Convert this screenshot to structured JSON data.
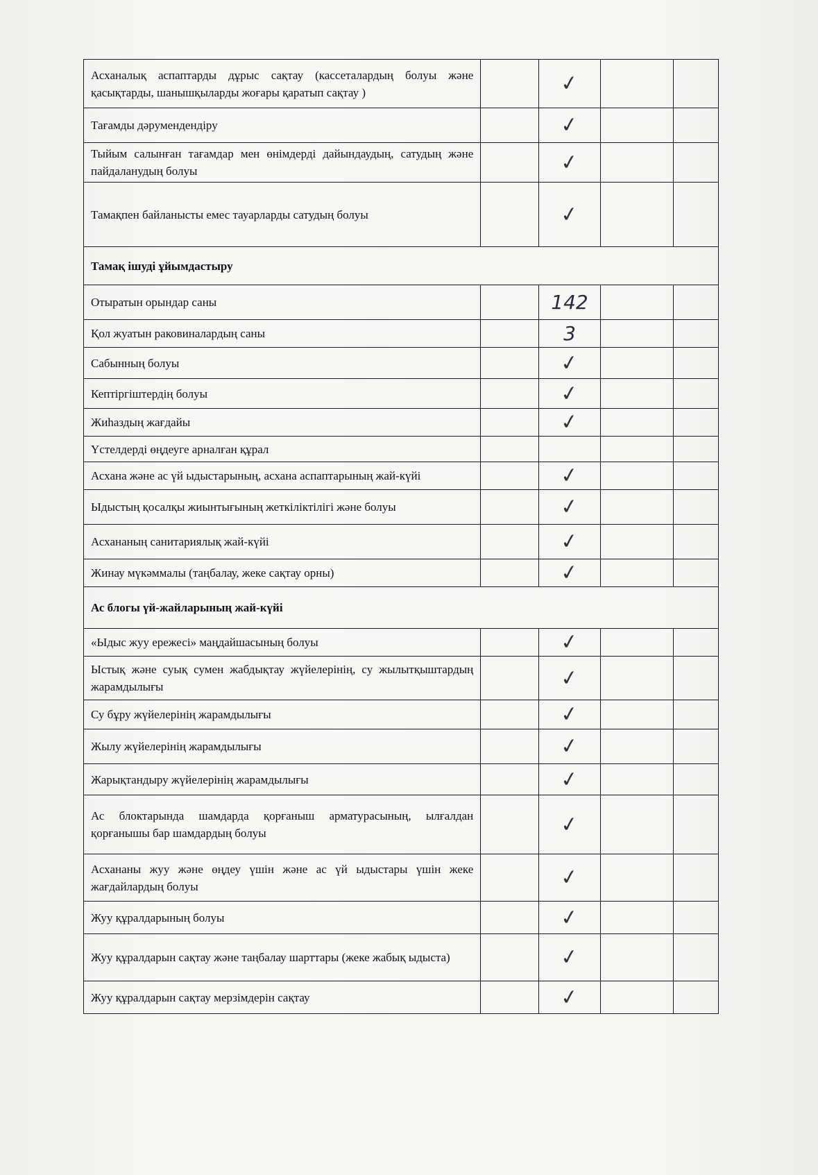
{
  "rows": [
    {
      "type": "item",
      "text": "Асханалық аспаптарды дұрыс сақтау (кассеталардың болуы және қасықтарды, шанышқыларды жоғары қаратып сақтау )",
      "mark": "✓"
    },
    {
      "type": "item",
      "text": "Тағамды дәрумендендіру",
      "mark": "✓"
    },
    {
      "type": "item",
      "text": "Тыйым салынған тағамдар мен өнімдерді дайындаудың, сатудың және пайдаланудың болуы",
      "mark": "✓"
    },
    {
      "type": "item",
      "text": "Тамақпен байланысты емес тауарларды сатудың болуы",
      "mark": "✓"
    },
    {
      "type": "section",
      "text": "Тамақ ішуді ұйымдастыру"
    },
    {
      "type": "item",
      "text": "Отыратын орындар саны",
      "mark": "142"
    },
    {
      "type": "item",
      "text": "Қол жуатын раковиналардың саны",
      "mark": "3"
    },
    {
      "type": "item",
      "text": "Сабынның болуы",
      "mark": "✓"
    },
    {
      "type": "item",
      "text": "Кептіргіштердің болуы",
      "mark": "✓"
    },
    {
      "type": "item",
      "text": "Жиһаздың жағдайы",
      "mark": "✓"
    },
    {
      "type": "item",
      "text": "Үстелдерді өңдеуге арналған құрал",
      "mark": ""
    },
    {
      "type": "item",
      "text": "Асхана және ас үй ыдыстарының, асхана аспаптарының жай-күйі",
      "mark": "✓"
    },
    {
      "type": "item",
      "text": "Ыдыстың қосалқы жиынтығының жеткіліктілігі және болуы",
      "mark": "✓"
    },
    {
      "type": "item",
      "text": "Асхананың санитариялық жай-күйі",
      "mark": "✓"
    },
    {
      "type": "item",
      "text": "Жинау мүкәммалы (таңбалау, жеке сақтау орны)",
      "mark": "✓"
    },
    {
      "type": "section",
      "text": "Ас блогы үй-жайларының жай-күйі"
    },
    {
      "type": "item",
      "text": "«Ыдыс жуу ережесі» маңдайшасының болуы",
      "mark": "✓"
    },
    {
      "type": "item",
      "text": "Ыстық және суық сумен жабдықтау жүйелерінің, су жылытқыштардың жарамдылығы",
      "mark": "✓"
    },
    {
      "type": "item",
      "text": "Су бұру жүйелерінің жарамдылығы",
      "mark": "✓"
    },
    {
      "type": "item",
      "text": "Жылу жүйелерінің жарамдылығы",
      "mark": "✓"
    },
    {
      "type": "item",
      "text": "Жарықтандыру жүйелерінің жарамдылығы",
      "mark": "✓"
    },
    {
      "type": "item",
      "text": "Ас блоктарында шамдарда қорғаныш арматурасының, ылғалдан қорғанышы бар шамдардың болуы",
      "mark": "✓"
    },
    {
      "type": "item",
      "text": "Асхананы жуу және өңдеу үшін және ас үй ыдыстары үшін жеке жағдайлардың болуы",
      "mark": "✓"
    },
    {
      "type": "item",
      "text": "Жуу құралдарының болуы",
      "mark": "✓"
    },
    {
      "type": "item",
      "text": "Жуу құралдарын сақтау және таңбалау шарттары (жеке жабық ыдыста)",
      "mark": "✓"
    },
    {
      "type": "item",
      "text": "Жуу құралдарын сақтау мерзімдерін сақтау",
      "mark": "✓"
    }
  ]
}
